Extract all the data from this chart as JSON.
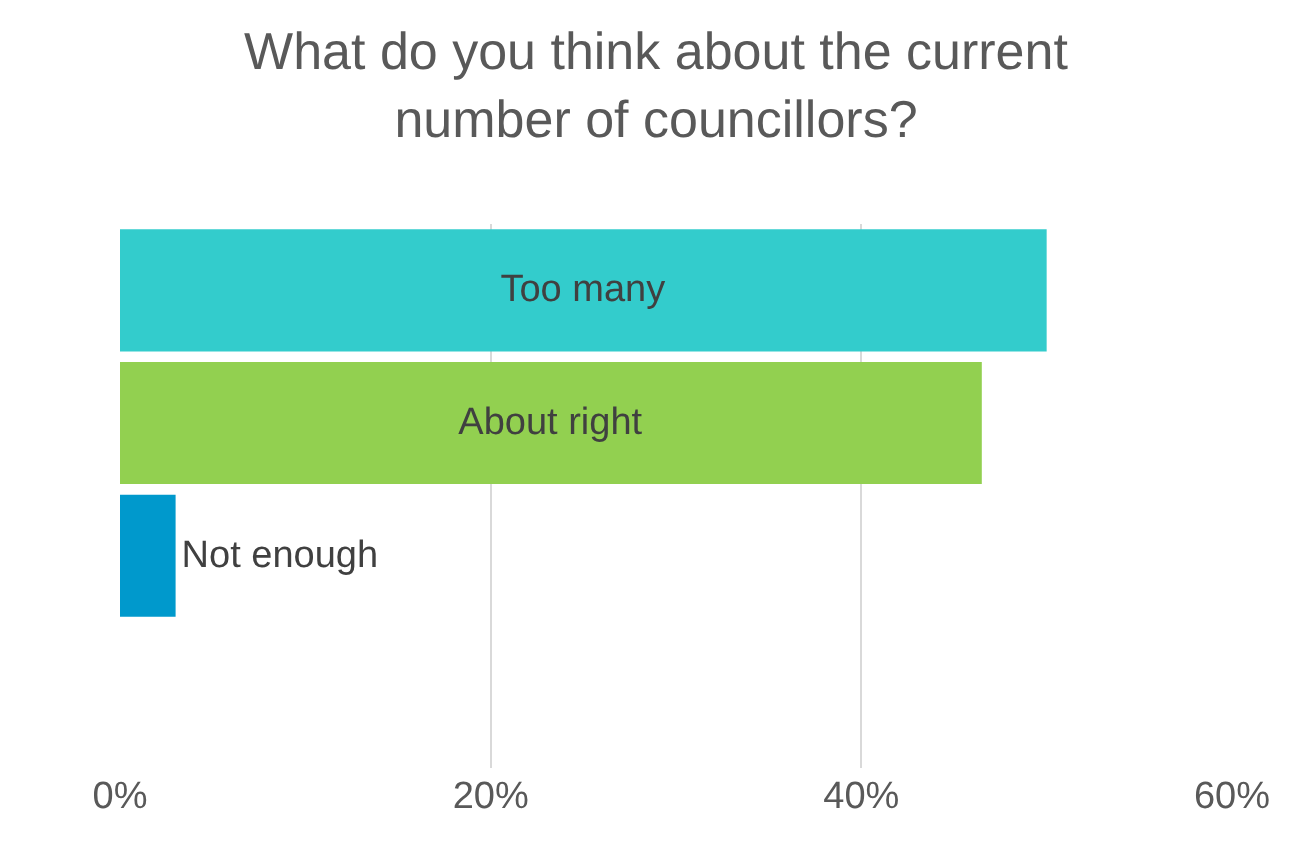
{
  "chart_data": {
    "type": "bar",
    "orientation": "horizontal",
    "title": "What do you think about the current number of councillors?",
    "categories": [
      "Too many",
      "About right",
      "Not enough"
    ],
    "values": [
      50,
      46.5,
      3
    ],
    "colors": [
      "#33cccc",
      "#92d050",
      "#0099cc"
    ],
    "xlim": [
      0,
      60
    ],
    "xticks": [
      {
        "value": 0,
        "label": "0%"
      },
      {
        "value": 20,
        "label": "20%"
      },
      {
        "value": 40,
        "label": "40%"
      },
      {
        "value": 60,
        "label": "60%"
      }
    ],
    "grid": "x",
    "tick_labels": "x"
  }
}
